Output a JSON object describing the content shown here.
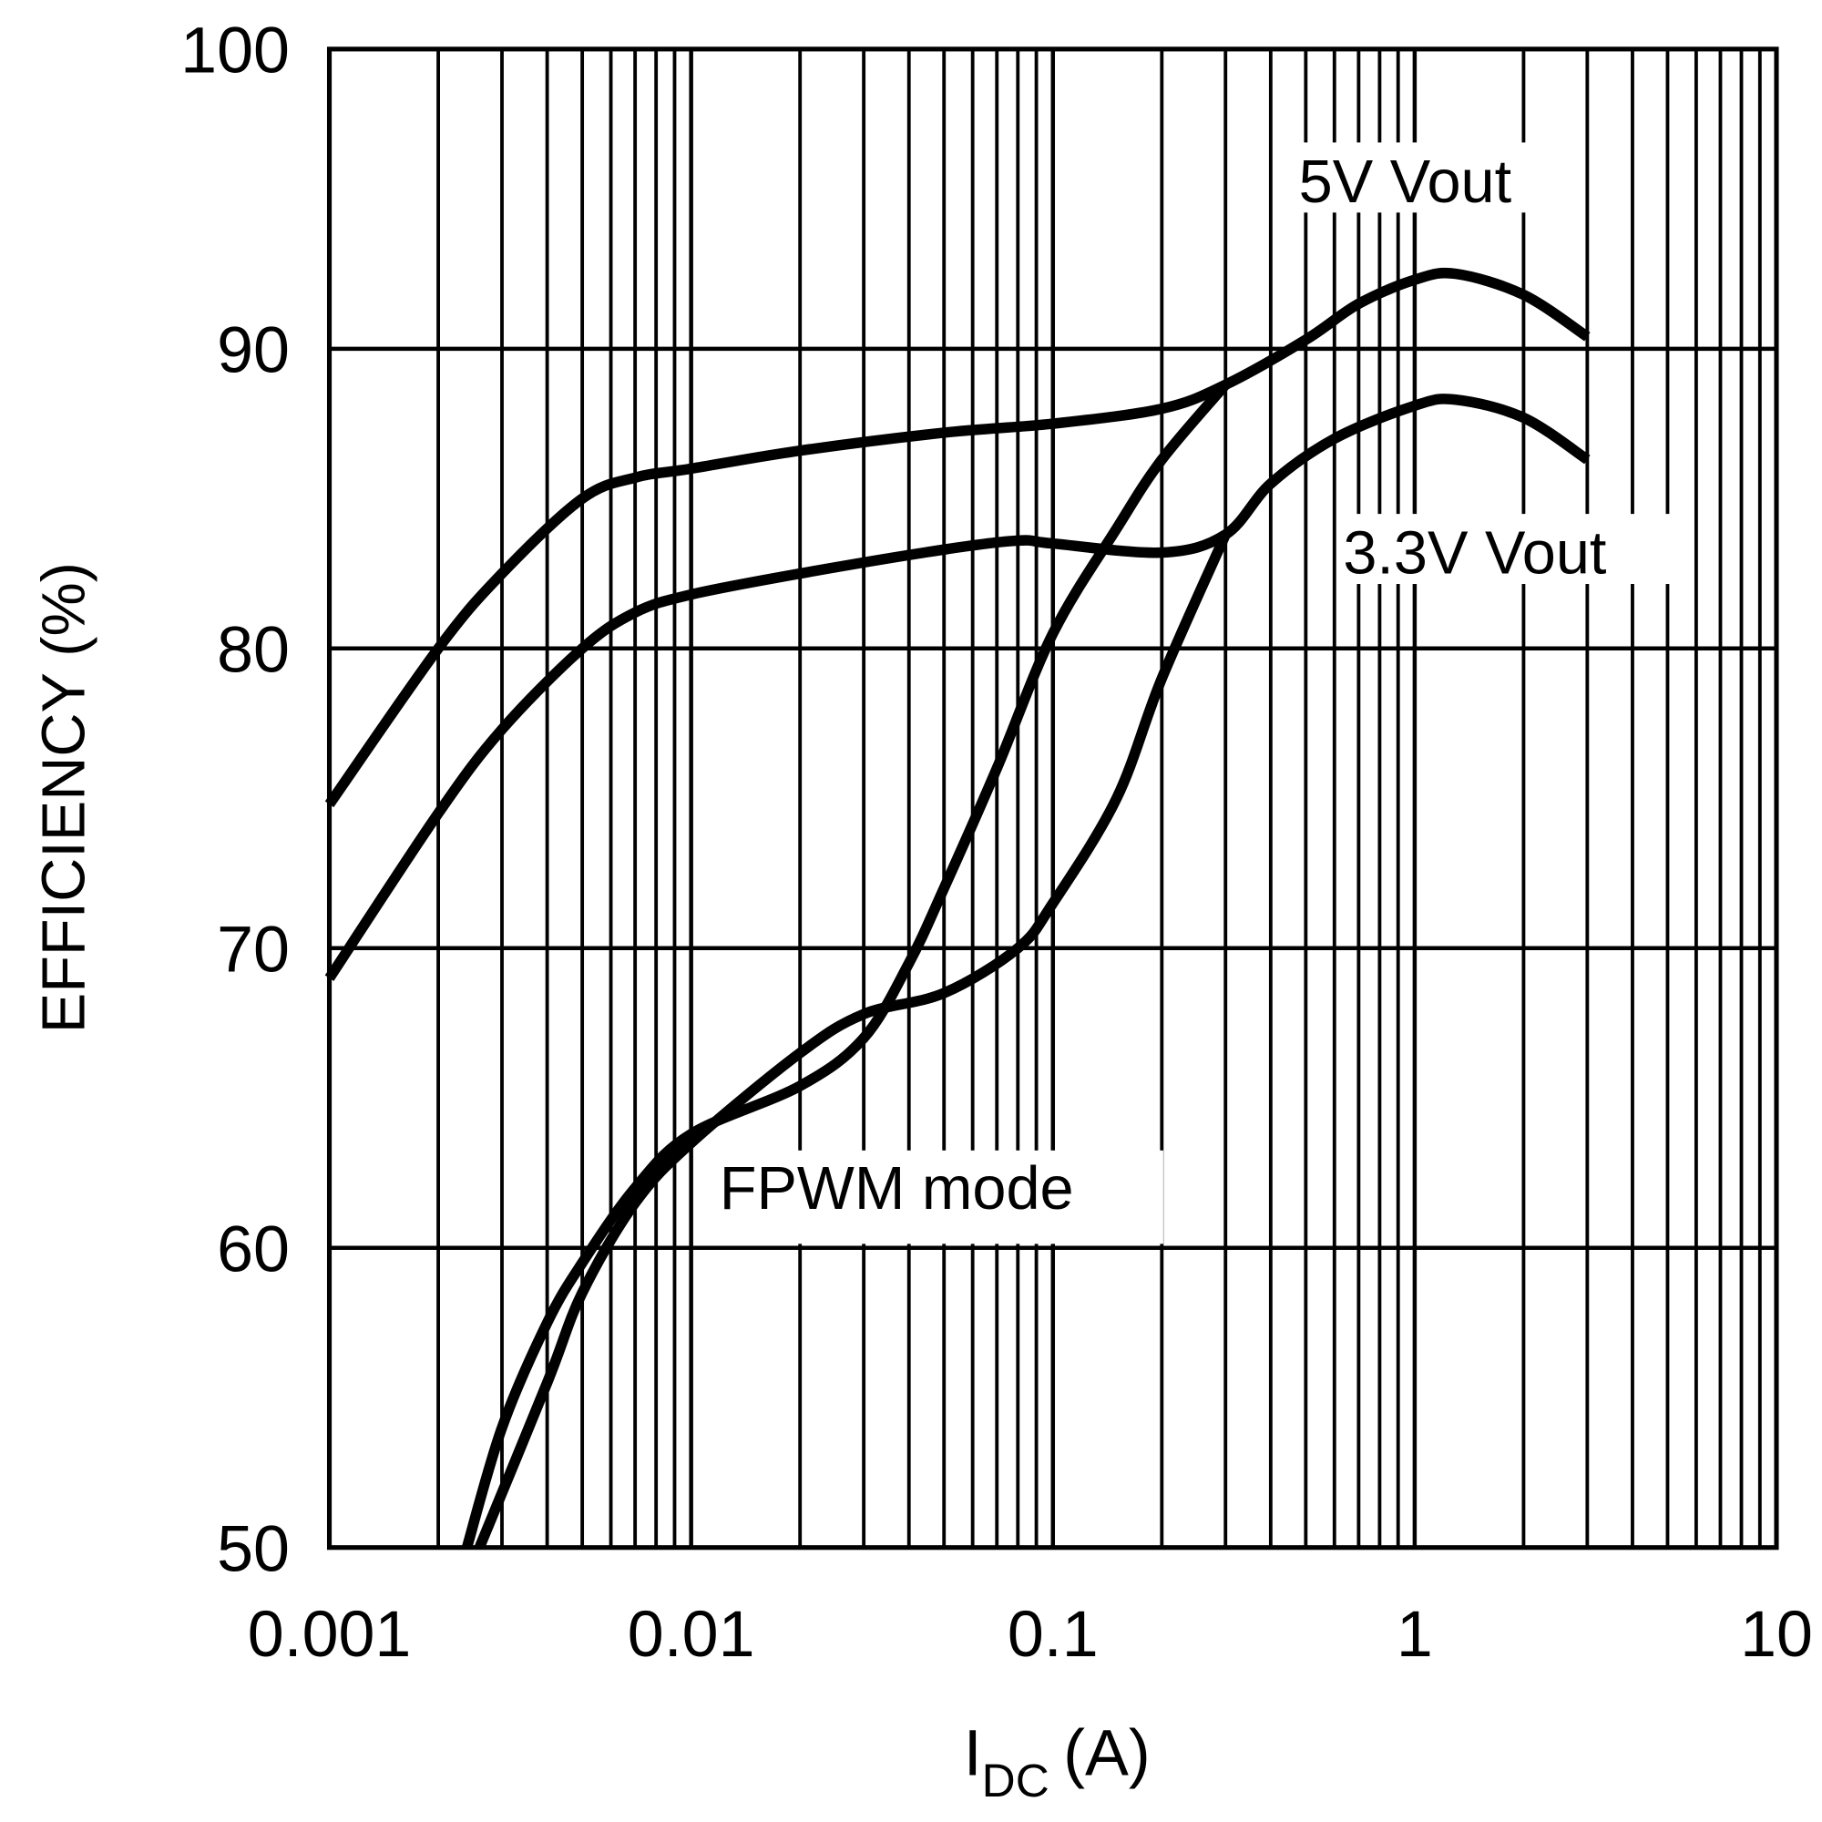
{
  "chart_data": {
    "type": "line",
    "xlabel": "I",
    "xlabel_sub": "DC",
    "xlabel_unit": "(A)",
    "ylabel": "EFFICIENCY (%)",
    "xscale": "log",
    "xlim": [
      0.001,
      10
    ],
    "ylim": [
      50,
      100
    ],
    "grid": true,
    "xticks": [
      "0.001",
      "0.01",
      "0.1",
      "1",
      "10"
    ],
    "yticks": [
      "50",
      "60",
      "70",
      "80",
      "90",
      "100"
    ],
    "annotations": [
      "5V Vout",
      "3.3V Vout",
      "FPWM mode"
    ],
    "line_color": "#000000",
    "series": [
      {
        "x": [
          0.001,
          0.002,
          0.003,
          0.005,
          0.007,
          0.01,
          0.02,
          0.05,
          0.1,
          0.2,
          0.3,
          0.5,
          0.7,
          1,
          1.3,
          2,
          3
        ],
        "y": [
          74.8,
          80,
          82.5,
          85,
          85.7,
          86,
          86.6,
          87.2,
          87.5,
          88,
          88.8,
          90.3,
          91.5,
          92.3,
          92.5,
          91.8,
          90.4
        ]
      },
      {
        "x": [
          0.001,
          0.002,
          0.003,
          0.005,
          0.007,
          0.01,
          0.02,
          0.05,
          0.08,
          0.1,
          0.2,
          0.3,
          0.4,
          0.6,
          1,
          1.3,
          2,
          3
        ],
        "y": [
          69,
          74.5,
          77.3,
          80,
          81.2,
          81.8,
          82.5,
          83.3,
          83.6,
          83.5,
          83.2,
          83.8,
          85.5,
          87,
          88.1,
          88.3,
          87.7,
          86.3
        ]
      },
      {
        "x": [
          0.0024,
          0.003,
          0.004,
          0.005,
          0.007,
          0.01,
          0.02,
          0.03,
          0.04,
          0.05,
          0.07,
          0.1,
          0.15,
          0.2,
          0.3
        ],
        "y": [
          50,
          54,
          57.5,
          59.5,
          62,
          63.8,
          65.4,
          67,
          69.5,
          72,
          76,
          80.5,
          84,
          86.3,
          88.8
        ]
      },
      {
        "x": [
          0.0026,
          0.004,
          0.005,
          0.007,
          0.01,
          0.02,
          0.03,
          0.05,
          0.08,
          0.1,
          0.15,
          0.2,
          0.3
        ],
        "y": [
          50,
          55.5,
          58.5,
          61.5,
          63.5,
          66.5,
          67.8,
          68.5,
          70,
          71.5,
          75,
          79,
          83.8
        ]
      }
    ]
  }
}
